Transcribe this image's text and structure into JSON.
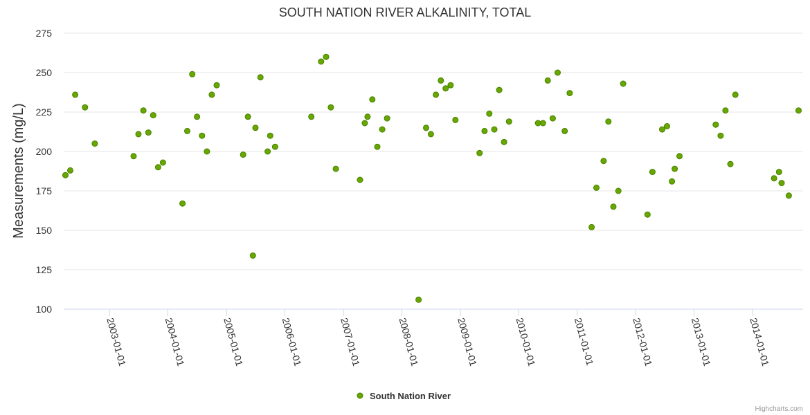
{
  "chart_data": {
    "type": "scatter",
    "title": "SOUTH NATION RIVER ALKALINITY, TOTAL",
    "xlabel": "",
    "ylabel": "Measurements (mg/L)",
    "ylim": [
      100,
      275
    ],
    "yticks": [
      100,
      125,
      150,
      175,
      200,
      225,
      250,
      275
    ],
    "xlim": [
      "2002-03-21",
      "2014-11-12"
    ],
    "xticks": [
      "2003-01-01",
      "2004-01-01",
      "2005-01-01",
      "2006-01-01",
      "2007-01-01",
      "2008-01-01",
      "2009-01-01",
      "2010-01-01",
      "2011-01-01",
      "2012-01-01",
      "2013-01-01",
      "2014-01-01"
    ],
    "grid": true,
    "legend_position": "bottom-center",
    "marker_color": "#7cb5ec",
    "series": [
      {
        "name": "South Nation River",
        "color": "#66a800",
        "points": [
          {
            "x": "2002-04-01",
            "y": 185
          },
          {
            "x": "2002-05-01",
            "y": 188
          },
          {
            "x": "2002-06-01",
            "y": 236
          },
          {
            "x": "2002-08-01",
            "y": 228
          },
          {
            "x": "2002-10-01",
            "y": 205
          },
          {
            "x": "2003-06-01",
            "y": 197
          },
          {
            "x": "2003-07-01",
            "y": 211
          },
          {
            "x": "2003-08-01",
            "y": 226
          },
          {
            "x": "2003-09-01",
            "y": 212
          },
          {
            "x": "2003-10-01",
            "y": 223
          },
          {
            "x": "2003-11-01",
            "y": 190
          },
          {
            "x": "2003-12-01",
            "y": 193
          },
          {
            "x": "2004-04-01",
            "y": 167
          },
          {
            "x": "2004-05-01",
            "y": 213
          },
          {
            "x": "2004-06-01",
            "y": 249
          },
          {
            "x": "2004-07-01",
            "y": 222
          },
          {
            "x": "2004-08-01",
            "y": 210
          },
          {
            "x": "2004-09-01",
            "y": 200
          },
          {
            "x": "2004-10-01",
            "y": 236
          },
          {
            "x": "2004-11-01",
            "y": 242
          },
          {
            "x": "2005-04-15",
            "y": 198
          },
          {
            "x": "2005-05-15",
            "y": 222
          },
          {
            "x": "2005-06-15",
            "y": 134
          },
          {
            "x": "2005-07-01",
            "y": 215
          },
          {
            "x": "2005-08-01",
            "y": 247
          },
          {
            "x": "2005-09-15",
            "y": 200
          },
          {
            "x": "2005-10-01",
            "y": 210
          },
          {
            "x": "2005-11-01",
            "y": 203
          },
          {
            "x": "2006-06-15",
            "y": 222
          },
          {
            "x": "2006-08-15",
            "y": 257
          },
          {
            "x": "2006-09-15",
            "y": 260
          },
          {
            "x": "2006-10-15",
            "y": 228
          },
          {
            "x": "2006-11-15",
            "y": 189
          },
          {
            "x": "2007-04-15",
            "y": 182
          },
          {
            "x": "2007-05-15",
            "y": 218
          },
          {
            "x": "2007-06-01",
            "y": 222
          },
          {
            "x": "2007-07-01",
            "y": 233
          },
          {
            "x": "2007-08-01",
            "y": 203
          },
          {
            "x": "2007-09-01",
            "y": 214
          },
          {
            "x": "2007-10-01",
            "y": 221
          },
          {
            "x": "2008-04-15",
            "y": 106
          },
          {
            "x": "2008-06-01",
            "y": 215
          },
          {
            "x": "2008-07-01",
            "y": 211
          },
          {
            "x": "2008-08-01",
            "y": 236
          },
          {
            "x": "2008-09-01",
            "y": 245
          },
          {
            "x": "2008-10-01",
            "y": 240
          },
          {
            "x": "2008-11-01",
            "y": 242
          },
          {
            "x": "2008-12-01",
            "y": 220
          },
          {
            "x": "2009-05-01",
            "y": 199
          },
          {
            "x": "2009-06-01",
            "y": 213
          },
          {
            "x": "2009-07-01",
            "y": 224
          },
          {
            "x": "2009-08-01",
            "y": 214
          },
          {
            "x": "2009-09-01",
            "y": 239
          },
          {
            "x": "2009-10-01",
            "y": 206
          },
          {
            "x": "2009-11-01",
            "y": 219
          },
          {
            "x": "2010-05-01",
            "y": 218
          },
          {
            "x": "2010-06-01",
            "y": 218
          },
          {
            "x": "2010-07-01",
            "y": 245
          },
          {
            "x": "2010-08-01",
            "y": 221
          },
          {
            "x": "2010-09-01",
            "y": 250
          },
          {
            "x": "2010-10-15",
            "y": 213
          },
          {
            "x": "2010-11-15",
            "y": 237
          },
          {
            "x": "2011-04-01",
            "y": 152
          },
          {
            "x": "2011-05-01",
            "y": 177
          },
          {
            "x": "2011-06-15",
            "y": 194
          },
          {
            "x": "2011-07-15",
            "y": 219
          },
          {
            "x": "2011-08-15",
            "y": 165
          },
          {
            "x": "2011-09-15",
            "y": 175
          },
          {
            "x": "2011-10-15",
            "y": 243
          },
          {
            "x": "2012-03-15",
            "y": 160
          },
          {
            "x": "2012-04-15",
            "y": 187
          },
          {
            "x": "2012-06-15",
            "y": 214
          },
          {
            "x": "2012-07-15",
            "y": 216
          },
          {
            "x": "2012-08-15",
            "y": 181
          },
          {
            "x": "2012-09-01",
            "y": 189
          },
          {
            "x": "2012-10-01",
            "y": 197
          },
          {
            "x": "2013-05-15",
            "y": 217
          },
          {
            "x": "2013-06-15",
            "y": 210
          },
          {
            "x": "2013-07-15",
            "y": 226
          },
          {
            "x": "2013-08-15",
            "y": 192
          },
          {
            "x": "2013-09-15",
            "y": 236
          },
          {
            "x": "2014-05-15",
            "y": 183
          },
          {
            "x": "2014-06-15",
            "y": 187
          },
          {
            "x": "2014-07-01",
            "y": 180
          },
          {
            "x": "2014-08-15",
            "y": 172
          },
          {
            "x": "2014-10-15",
            "y": 226
          }
        ]
      }
    ]
  },
  "credits": "Highcharts.com"
}
